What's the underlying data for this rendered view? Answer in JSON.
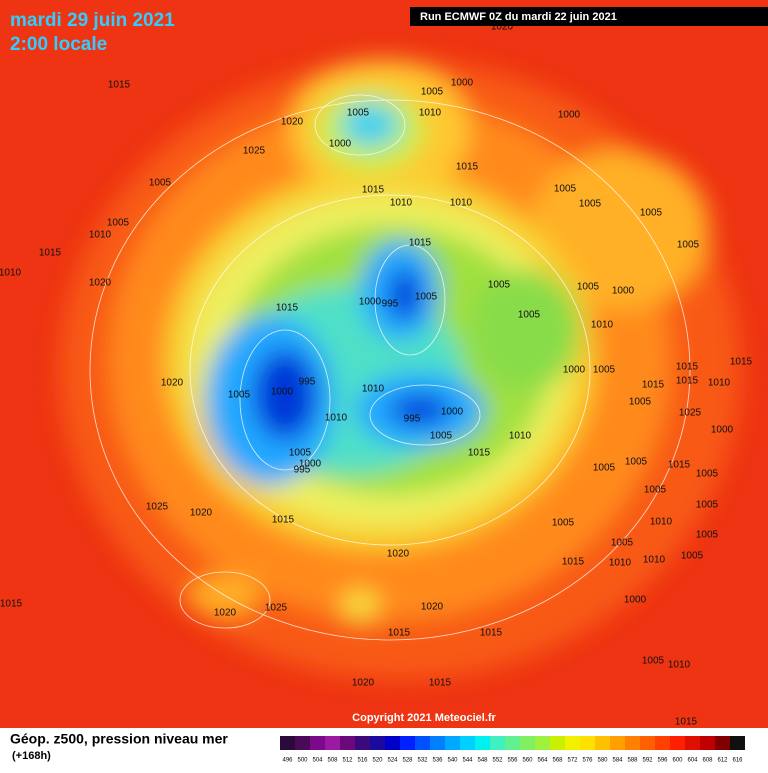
{
  "header": {
    "date": "mardi 29 juin 2021",
    "time": "2:00 locale",
    "run": "Run ECMWF 0Z du mardi 22 juin 2021"
  },
  "map": {
    "isobar_labels": [
      "1020",
      "1005",
      "1000",
      "1005",
      "1010",
      "1020",
      "1025",
      "1000",
      "1015",
      "1000",
      "1005",
      "1015",
      "1010",
      "1015",
      "1010",
      "1005",
      "1005",
      "1005",
      "1005",
      "1010",
      "1015",
      "1015",
      "1010",
      "1020",
      "1005",
      "1005",
      "1005",
      "1000",
      "1015",
      "1000",
      "995",
      "1005",
      "1005",
      "1010",
      "1020",
      "1000",
      "1005",
      "1015",
      "1015",
      "1010",
      "995",
      "1000",
      "1005",
      "1010",
      "1005",
      "1025",
      "1000",
      "1010",
      "995",
      "1000",
      "1005",
      "1010",
      "1015",
      "1005",
      "1000",
      "995",
      "1005",
      "1005",
      "1015",
      "1005",
      "1005",
      "1025",
      "1020",
      "1015",
      "1005",
      "1010",
      "1005",
      "1020",
      "1005",
      "1005",
      "1015",
      "1010",
      "1010",
      "1005",
      "1020",
      "1025",
      "1020",
      "1000",
      "1015",
      "1015",
      "1015",
      "1015",
      "1015",
      "1005",
      "1010",
      "1020",
      "1015",
      "1015"
    ],
    "copyright": "Copyright 2021 Meteociel.fr"
  },
  "footer": {
    "title": "Géop. z500, pression niveau mer",
    "lead": "(+168h)",
    "scale_labels": [
      "496",
      "500",
      "504",
      "508",
      "512",
      "516",
      "520",
      "524",
      "528",
      "532",
      "536",
      "540",
      "544",
      "548",
      "552",
      "556",
      "560",
      "564",
      "568",
      "572",
      "576",
      "580",
      "584",
      "588",
      "592",
      "596",
      "600",
      "604",
      "608",
      "612",
      "616"
    ]
  }
}
